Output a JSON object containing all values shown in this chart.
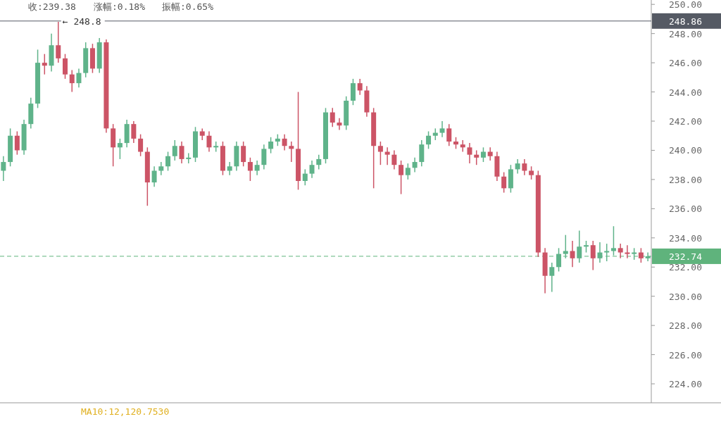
{
  "chart_data": {
    "type": "candlestick",
    "categories": [
      null,
      null,
      null,
      null,
      null,
      null,
      null,
      null,
      null,
      null,
      null,
      null,
      null,
      null,
      null,
      null,
      null,
      null,
      null,
      null,
      null,
      null,
      null,
      null,
      null,
      null,
      null,
      null,
      null,
      null,
      null,
      null,
      null,
      null,
      null,
      null,
      null,
      null,
      null,
      null,
      null,
      null,
      null,
      null,
      null,
      null,
      null,
      null,
      null,
      null,
      null,
      null,
      null,
      null,
      null,
      null,
      null,
      null,
      null,
      null,
      null,
      null,
      null,
      null,
      null,
      null,
      null,
      null,
      null,
      null,
      null,
      null,
      null,
      null,
      null,
      null,
      null,
      null,
      null,
      null,
      null,
      null,
      null,
      null,
      null,
      null,
      null,
      null,
      null,
      null,
      null,
      null,
      null,
      null,
      null
    ],
    "ohlc": [
      [
        238.6,
        239.6,
        237.9,
        239.2
      ],
      [
        239.2,
        241.5,
        238.9,
        241.0
      ],
      [
        241.0,
        241.3,
        239.7,
        240.0
      ],
      [
        240.0,
        242.1,
        239.7,
        241.8
      ],
      [
        241.8,
        243.6,
        241.5,
        243.2
      ],
      [
        243.2,
        246.9,
        242.9,
        246.0
      ],
      [
        246.0,
        246.6,
        245.2,
        245.8
      ],
      [
        245.8,
        248.0,
        245.4,
        247.2
      ],
      [
        247.2,
        248.8,
        246.0,
        246.3
      ],
      [
        246.3,
        246.6,
        244.9,
        245.2
      ],
      [
        245.2,
        245.5,
        244.0,
        244.6
      ],
      [
        244.6,
        245.6,
        244.3,
        245.3
      ],
      [
        245.3,
        247.4,
        245.0,
        247.0
      ],
      [
        247.0,
        247.3,
        245.3,
        245.6
      ],
      [
        245.6,
        247.7,
        245.3,
        247.4
      ],
      [
        247.4,
        247.6,
        241.2,
        241.5
      ],
      [
        241.5,
        241.8,
        238.9,
        240.2
      ],
      [
        240.2,
        240.8,
        239.4,
        240.5
      ],
      [
        240.5,
        242.1,
        240.2,
        241.8
      ],
      [
        241.8,
        242.0,
        240.5,
        240.8
      ],
      [
        240.8,
        241.1,
        239.6,
        239.9
      ],
      [
        239.9,
        240.2,
        236.2,
        237.8
      ],
      [
        237.8,
        238.9,
        237.5,
        238.6
      ],
      [
        238.6,
        239.2,
        238.3,
        238.9
      ],
      [
        238.9,
        239.9,
        238.6,
        239.6
      ],
      [
        239.6,
        240.7,
        239.3,
        240.3
      ],
      [
        240.3,
        240.6,
        239.1,
        239.4
      ],
      [
        239.4,
        239.8,
        239.1,
        239.5
      ],
      [
        239.5,
        241.6,
        239.2,
        241.3
      ],
      [
        241.3,
        241.5,
        240.7,
        241.0
      ],
      [
        241.0,
        241.3,
        239.9,
        240.2
      ],
      [
        240.2,
        240.6,
        239.9,
        240.3
      ],
      [
        240.3,
        240.6,
        238.3,
        238.6
      ],
      [
        238.6,
        239.2,
        238.3,
        238.9
      ],
      [
        238.9,
        240.6,
        238.6,
        240.3
      ],
      [
        240.3,
        240.6,
        238.9,
        239.2
      ],
      [
        239.2,
        239.5,
        237.9,
        238.6
      ],
      [
        238.6,
        239.3,
        238.3,
        239.0
      ],
      [
        239.0,
        240.4,
        238.7,
        240.1
      ],
      [
        240.1,
        240.9,
        239.8,
        240.6
      ],
      [
        240.6,
        241.1,
        240.3,
        240.8
      ],
      [
        240.8,
        241.1,
        240.0,
        240.3
      ],
      [
        240.3,
        240.6,
        239.2,
        240.1
      ],
      [
        240.1,
        244.0,
        237.3,
        237.9
      ],
      [
        237.9,
        238.7,
        237.6,
        238.4
      ],
      [
        238.4,
        239.3,
        238.1,
        239.0
      ],
      [
        239.0,
        239.7,
        238.7,
        239.4
      ],
      [
        239.4,
        242.9,
        239.1,
        242.6
      ],
      [
        242.6,
        242.9,
        241.6,
        241.9
      ],
      [
        241.9,
        242.2,
        241.4,
        241.7
      ],
      [
        241.7,
        243.7,
        241.4,
        243.4
      ],
      [
        243.4,
        244.9,
        243.1,
        244.6
      ],
      [
        244.6,
        244.9,
        243.8,
        244.1
      ],
      [
        244.1,
        244.4,
        242.3,
        242.6
      ],
      [
        242.6,
        242.9,
        237.4,
        240.3
      ],
      [
        240.3,
        240.6,
        239.0,
        239.9
      ],
      [
        239.9,
        240.2,
        239.0,
        239.7
      ],
      [
        239.7,
        240.0,
        238.7,
        239.0
      ],
      [
        239.0,
        239.3,
        237.0,
        238.3
      ],
      [
        238.3,
        239.1,
        238.0,
        238.8
      ],
      [
        238.8,
        239.5,
        238.5,
        239.2
      ],
      [
        239.2,
        240.7,
        238.9,
        240.4
      ],
      [
        240.4,
        241.3,
        240.1,
        241.0
      ],
      [
        241.0,
        241.5,
        240.7,
        241.2
      ],
      [
        241.2,
        242.0,
        240.9,
        241.5
      ],
      [
        241.5,
        241.8,
        240.3,
        240.6
      ],
      [
        240.6,
        240.9,
        240.1,
        240.4
      ],
      [
        240.4,
        240.7,
        239.9,
        240.2
      ],
      [
        240.2,
        240.5,
        239.1,
        239.7
      ],
      [
        239.7,
        240.0,
        239.0,
        239.5
      ],
      [
        239.5,
        240.2,
        239.2,
        239.9
      ],
      [
        239.9,
        240.2,
        239.3,
        239.6
      ],
      [
        239.6,
        239.9,
        237.9,
        238.2
      ],
      [
        238.2,
        238.5,
        237.1,
        237.4
      ],
      [
        237.4,
        239.0,
        237.1,
        238.7
      ],
      [
        238.7,
        239.4,
        238.4,
        239.1
      ],
      [
        239.1,
        239.4,
        238.3,
        238.6
      ],
      [
        238.6,
        238.9,
        238.0,
        238.3
      ],
      [
        238.3,
        238.6,
        232.7,
        233.0
      ],
      [
        233.0,
        233.3,
        230.2,
        231.4
      ],
      [
        231.4,
        232.3,
        230.3,
        232.0
      ],
      [
        232.0,
        233.3,
        231.7,
        232.9
      ],
      [
        232.9,
        234.2,
        232.6,
        233.1
      ],
      [
        233.1,
        233.8,
        232.0,
        232.6
      ],
      [
        232.6,
        234.5,
        232.3,
        233.4
      ],
      [
        233.4,
        233.8,
        233.0,
        233.5
      ],
      [
        233.5,
        233.8,
        231.8,
        232.6
      ],
      [
        232.6,
        233.7,
        232.3,
        233.0
      ],
      [
        233.0,
        233.6,
        232.4,
        233.1
      ],
      [
        233.1,
        234.8,
        232.8,
        233.3
      ],
      [
        233.3,
        233.6,
        232.6,
        233.0
      ],
      [
        233.0,
        233.5,
        232.6,
        232.9
      ],
      [
        232.9,
        233.3,
        232.5,
        233.0
      ],
      [
        233.0,
        233.3,
        232.3,
        232.6
      ],
      [
        232.6,
        233.0,
        232.4,
        232.74
      ]
    ],
    "ylim": [
      222.7,
      250.3
    ],
    "yticks": [
      {
        "value": 224,
        "label": "224.00"
      },
      {
        "value": 226,
        "label": "226.00"
      },
      {
        "value": 228,
        "label": "228.00"
      },
      {
        "value": 230,
        "label": "230.00"
      },
      {
        "value": 232,
        "label": "232.00"
      },
      {
        "value": 234,
        "label": "234.00"
      },
      {
        "value": 236,
        "label": "236.00"
      },
      {
        "value": 238,
        "label": "238.00"
      },
      {
        "value": 240,
        "label": "240.00"
      },
      {
        "value": 242,
        "label": "242.00"
      },
      {
        "value": 244,
        "label": "244.00"
      },
      {
        "value": 246,
        "label": "246.00"
      },
      {
        "value": 248,
        "label": "248.00"
      },
      {
        "value": 250,
        "label": "250.00"
      }
    ],
    "ref_lines": [
      {
        "axis": "y",
        "value": 248.86,
        "label": "248.86",
        "color": "#555a64",
        "line_style": "solid"
      },
      {
        "axis": "y",
        "value": 232.74,
        "label": "232.74",
        "color": "#5fb37c",
        "line_style": "dashed"
      }
    ],
    "annotations": [
      {
        "text": "← 248.8",
        "y": 248.8
      },
      "收:239.38",
      "涨幅:0.18%",
      "振幅:0.65%",
      "MA10:12,120.7530"
    ]
  }
}
